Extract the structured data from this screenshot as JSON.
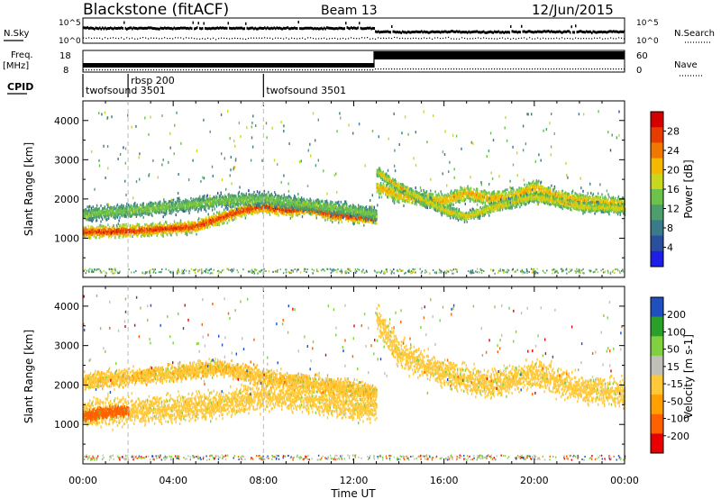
{
  "header": {
    "title": "Blackstone (fitACF)",
    "beam": "Beam 13",
    "date": "12/Jun/2015"
  },
  "noise_panel": {
    "left_label": "N.Sky",
    "right_label": "N.Search",
    "right_ticks": [
      "10^5",
      "10^0"
    ]
  },
  "freq_panel": {
    "label_line1": "Freq.",
    "label_line2": "[MHz]",
    "left_ticks": [
      "18",
      "8"
    ],
    "right_label": "Nave",
    "right_ticks": [
      "60",
      "0"
    ]
  },
  "cpid": {
    "label": "CPID",
    "modes": [
      {
        "name": "twofsound 3501",
        "start_hour": 0
      },
      {
        "name": "rbsp 200",
        "start_hour": 2
      },
      {
        "name": "twofsound 3501",
        "start_hour": 8
      }
    ]
  },
  "axes": {
    "y_label": "Slant Range [km]",
    "x_label": "Time UT",
    "x_ticks": [
      "00:00",
      "04:00",
      "08:00",
      "12:00",
      "16:00",
      "20:00",
      "00:00"
    ],
    "y_ticks": [
      "1000",
      "2000",
      "3000",
      "4000"
    ]
  },
  "colorbars": {
    "power": {
      "label": "Power [dB]",
      "ticks": [
        "28",
        "24",
        "20",
        "16",
        "12",
        "8",
        "4"
      ]
    },
    "velocity": {
      "label": "Velocity [m s-1]",
      "ticks": [
        "200",
        "100",
        "50",
        "15",
        "-15",
        "-50",
        "-100",
        "-200"
      ]
    }
  },
  "chart_data": [
    {
      "type": "heatmap",
      "name_printed": "Power",
      "x_unit": "hours UT",
      "xlim": [
        0,
        24
      ],
      "ylim": [
        0,
        4500
      ],
      "zlim": [
        0,
        30
      ],
      "colors": [
        "#1e1ee6",
        "#2a4f9c",
        "#3a7a8a",
        "#4c9e6a",
        "#6cc24a",
        "#c8d81e",
        "#f5b800",
        "#f07800",
        "#e63c00",
        "#d40000"
      ],
      "bands": [
        {
          "points": [
            [
              0,
              1150
            ],
            [
              2,
              1180
            ],
            [
              4,
              1250
            ],
            [
              5,
              1300
            ],
            [
              6,
              1500
            ],
            [
              7,
              1700
            ],
            [
              8,
              1800
            ],
            [
              9,
              1700
            ],
            [
              10,
              1750
            ],
            [
              11,
              1600
            ],
            [
              12,
              1550
            ],
            [
              13,
              1500
            ]
          ],
          "width": 220,
          "power": 27
        },
        {
          "points": [
            [
              0,
              1600
            ],
            [
              2,
              1700
            ],
            [
              4,
              1800
            ],
            [
              6,
              1950
            ],
            [
              8,
              2000
            ],
            [
              10,
              1850
            ],
            [
              12,
              1700
            ],
            [
              13,
              1600
            ]
          ],
          "width": 250,
          "power": 15
        },
        {
          "points": [
            [
              13,
              2300
            ],
            [
              14,
              2100
            ],
            [
              15,
              2000
            ],
            [
              16,
              1950
            ],
            [
              17,
              2150
            ],
            [
              18,
              2000
            ],
            [
              19,
              2050
            ],
            [
              20,
              2300
            ],
            [
              21,
              2050
            ],
            [
              22,
              1950
            ],
            [
              23,
              1900
            ],
            [
              24,
              1850
            ]
          ],
          "width": 280,
          "power": 21
        },
        {
          "points": [
            [
              13,
              2700
            ],
            [
              14,
              2300
            ],
            [
              16,
              1700
            ],
            [
              17,
              1550
            ],
            [
              18,
              1750
            ],
            [
              20,
              2050
            ],
            [
              22,
              1800
            ],
            [
              24,
              1750
            ]
          ],
          "width": 180,
          "power": 19
        }
      ]
    },
    {
      "type": "heatmap",
      "name_printed": "Velocity",
      "x_unit": "hours UT",
      "xlim": [
        0,
        24
      ],
      "ylim": [
        0,
        4500
      ],
      "zlim": [
        -200,
        200
      ],
      "colors": [
        "#e60000",
        "#ff6000",
        "#ffa000",
        "#ffc838",
        "#c0c0b8",
        "#80d040",
        "#2aa02a",
        "#2050c0"
      ],
      "bands": [
        {
          "points": [
            [
              0,
              1300
            ],
            [
              2,
              1350
            ],
            [
              4,
              1400
            ],
            [
              6,
              1500
            ],
            [
              8,
              1750
            ],
            [
              10,
              1650
            ],
            [
              12,
              1450
            ],
            [
              13,
              1400
            ]
          ],
          "width": 500,
          "velocity": 0
        },
        {
          "points": [
            [
              0,
              2100
            ],
            [
              2,
              2200
            ],
            [
              4,
              2300
            ],
            [
              6,
              2450
            ],
            [
              8,
              2200
            ],
            [
              10,
              2050
            ],
            [
              12,
              1900
            ],
            [
              13,
              1800
            ]
          ],
          "width": 300,
          "velocity": -10
        },
        {
          "points": [
            [
              13,
              3700
            ],
            [
              14,
              2800
            ],
            [
              16,
              2300
            ],
            [
              18,
              2000
            ],
            [
              20,
              2300
            ],
            [
              22,
              1900
            ],
            [
              24,
              1800
            ]
          ],
          "width": 500,
          "velocity": 0
        },
        {
          "points": [
            [
              0,
              1200
            ],
            [
              1,
              1300
            ],
            [
              2,
              1350
            ]
          ],
          "width": 200,
          "velocity": -60
        }
      ]
    }
  ]
}
